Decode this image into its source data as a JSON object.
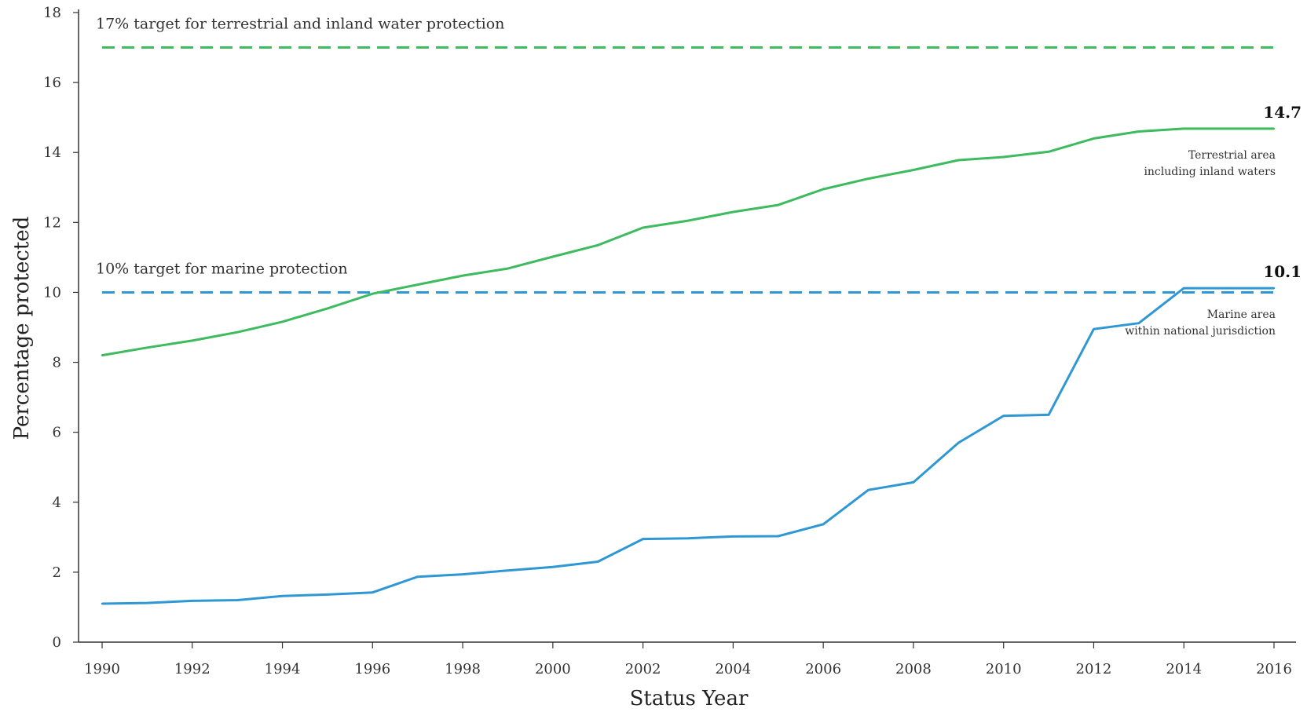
{
  "chart_data": {
    "type": "line",
    "xlabel": "Status Year",
    "ylabel": "Percentage protected",
    "xlim": [
      1990,
      2016
    ],
    "ylim": [
      0,
      18
    ],
    "x_ticks": [
      "1990",
      "1992",
      "1994",
      "1996",
      "1998",
      "2000",
      "2002",
      "2004",
      "2006",
      "2008",
      "2010",
      "2012",
      "2014",
      "2016"
    ],
    "y_ticks": [
      "0",
      "2",
      "4",
      "6",
      "8",
      "10",
      "12",
      "14",
      "16",
      "18"
    ],
    "grid": false,
    "x": [
      1990,
      1991,
      1992,
      1993,
      1994,
      1995,
      1996,
      1997,
      1998,
      1999,
      2000,
      2001,
      2002,
      2003,
      2004,
      2005,
      2006,
      2007,
      2008,
      2009,
      2010,
      2011,
      2012,
      2013,
      2014,
      2015,
      2016
    ],
    "series": [
      {
        "key": "terrestrial",
        "name_lines": [
          "Terrestrial area",
          "including inland waters"
        ],
        "color": "#3dbb5e",
        "values": [
          8.2,
          8.42,
          8.62,
          8.86,
          9.16,
          9.54,
          9.96,
          10.22,
          10.48,
          10.68,
          11.02,
          11.35,
          11.85,
          12.05,
          12.3,
          12.5,
          12.95,
          13.25,
          13.5,
          13.78,
          13.87,
          14.02,
          14.4,
          14.6,
          14.68,
          14.68,
          14.68
        ],
        "end_label": "14.7"
      },
      {
        "key": "marine",
        "name_lines": [
          "Marine area",
          "within national jurisdiction"
        ],
        "color": "#2f98d4",
        "values": [
          1.1,
          1.12,
          1.18,
          1.2,
          1.32,
          1.36,
          1.42,
          1.87,
          1.94,
          2.05,
          2.15,
          2.3,
          2.95,
          2.97,
          3.02,
          3.03,
          3.37,
          4.35,
          4.57,
          5.7,
          6.47,
          6.5,
          8.95,
          9.12,
          10.12,
          10.12,
          10.12
        ],
        "end_label": "10.1"
      }
    ],
    "reference_lines": [
      {
        "key": "terrestrial_target",
        "value": 17,
        "label": "17% target for terrestrial and inland water protection",
        "color": "#3dbb5e",
        "style": "dashed"
      },
      {
        "key": "marine_target",
        "value": 10,
        "label": "10% target for marine protection",
        "color": "#2f98d4",
        "style": "dashed"
      }
    ]
  }
}
